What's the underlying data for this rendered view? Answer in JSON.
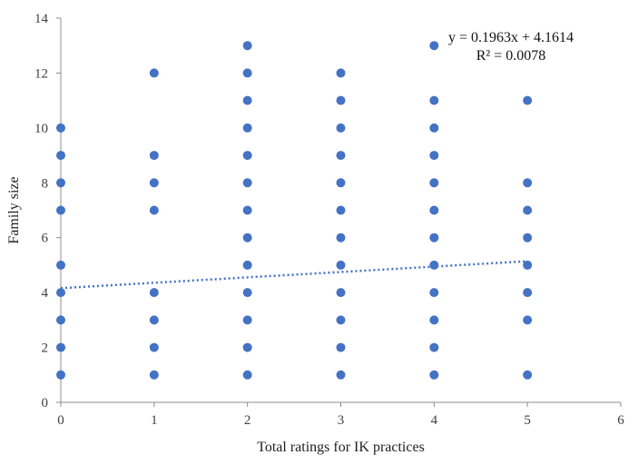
{
  "chart_data": {
    "type": "scatter",
    "title": "",
    "xlabel": "Total ratings for IK practices",
    "ylabel": "Family size",
    "xlim": [
      0,
      6
    ],
    "ylim": [
      0,
      14
    ],
    "xticks": [
      0,
      1,
      2,
      3,
      4,
      5,
      6
    ],
    "yticks": [
      0,
      2,
      4,
      6,
      8,
      10,
      12,
      14
    ],
    "grid": false,
    "legend": "none",
    "marker_color": "#4472C4",
    "trendline_color": "#4472C4",
    "points": [
      {
        "x": 0,
        "y": 1
      },
      {
        "x": 0,
        "y": 2
      },
      {
        "x": 0,
        "y": 3
      },
      {
        "x": 0,
        "y": 4
      },
      {
        "x": 0,
        "y": 5
      },
      {
        "x": 0,
        "y": 7
      },
      {
        "x": 0,
        "y": 8
      },
      {
        "x": 0,
        "y": 9
      },
      {
        "x": 0,
        "y": 10
      },
      {
        "x": 1,
        "y": 1
      },
      {
        "x": 1,
        "y": 2
      },
      {
        "x": 1,
        "y": 3
      },
      {
        "x": 1,
        "y": 4
      },
      {
        "x": 1,
        "y": 7
      },
      {
        "x": 1,
        "y": 8
      },
      {
        "x": 1,
        "y": 9
      },
      {
        "x": 1,
        "y": 12
      },
      {
        "x": 2,
        "y": 1
      },
      {
        "x": 2,
        "y": 2
      },
      {
        "x": 2,
        "y": 3
      },
      {
        "x": 2,
        "y": 4
      },
      {
        "x": 2,
        "y": 5
      },
      {
        "x": 2,
        "y": 6
      },
      {
        "x": 2,
        "y": 7
      },
      {
        "x": 2,
        "y": 8
      },
      {
        "x": 2,
        "y": 9
      },
      {
        "x": 2,
        "y": 10
      },
      {
        "x": 2,
        "y": 11
      },
      {
        "x": 2,
        "y": 12
      },
      {
        "x": 2,
        "y": 13
      },
      {
        "x": 3,
        "y": 1
      },
      {
        "x": 3,
        "y": 2
      },
      {
        "x": 3,
        "y": 3
      },
      {
        "x": 3,
        "y": 4
      },
      {
        "x": 3,
        "y": 5
      },
      {
        "x": 3,
        "y": 6
      },
      {
        "x": 3,
        "y": 7
      },
      {
        "x": 3,
        "y": 8
      },
      {
        "x": 3,
        "y": 9
      },
      {
        "x": 3,
        "y": 10
      },
      {
        "x": 3,
        "y": 11
      },
      {
        "x": 3,
        "y": 12
      },
      {
        "x": 4,
        "y": 1
      },
      {
        "x": 4,
        "y": 2
      },
      {
        "x": 4,
        "y": 3
      },
      {
        "x": 4,
        "y": 4
      },
      {
        "x": 4,
        "y": 5
      },
      {
        "x": 4,
        "y": 6
      },
      {
        "x": 4,
        "y": 7
      },
      {
        "x": 4,
        "y": 8
      },
      {
        "x": 4,
        "y": 9
      },
      {
        "x": 4,
        "y": 10
      },
      {
        "x": 4,
        "y": 11
      },
      {
        "x": 4,
        "y": 13
      },
      {
        "x": 5,
        "y": 1
      },
      {
        "x": 5,
        "y": 3
      },
      {
        "x": 5,
        "y": 4
      },
      {
        "x": 5,
        "y": 5
      },
      {
        "x": 5,
        "y": 6
      },
      {
        "x": 5,
        "y": 7
      },
      {
        "x": 5,
        "y": 8
      },
      {
        "x": 5,
        "y": 11
      }
    ],
    "trendline": {
      "type": "linear",
      "style": "dotted",
      "slope": 0.1963,
      "intercept": 4.1614,
      "x_range": [
        0,
        5
      ],
      "equation": "y = 0.1963x + 4.1614",
      "r_squared": "R² = 0.0078"
    }
  }
}
